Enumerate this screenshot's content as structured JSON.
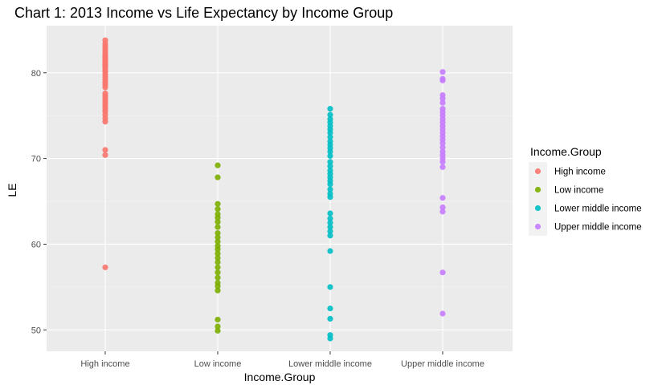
{
  "chart_data": {
    "type": "scatter",
    "title": "Chart 1: 2013 Income vs Life Expectancy by Income Group",
    "xlabel": "Income.Group",
    "ylabel": "LE",
    "categories": [
      "High income",
      "Low income",
      "Lower middle income",
      "Upper middle income"
    ],
    "yticks": [
      50,
      60,
      70,
      80
    ],
    "ylim": [
      47.5,
      85.5
    ],
    "grid": true,
    "legend": {
      "title": "Income.Group",
      "position": "right",
      "entries": [
        "High income",
        "Low income",
        "Lower middle income",
        "Upper middle income"
      ]
    },
    "series": [
      {
        "name": "High income",
        "color": "#F8766D",
        "values": [
          83.8,
          83.4,
          83.1,
          82.8,
          82.5,
          82.2,
          82.0,
          81.8,
          81.6,
          81.4,
          81.2,
          81.0,
          80.8,
          80.6,
          80.3,
          80.1,
          79.8,
          79.5,
          79.2,
          78.9,
          78.6,
          78.3,
          77.6,
          77.3,
          77.0,
          76.7,
          76.4,
          76.1,
          75.8,
          75.5,
          75.1,
          74.7,
          74.3,
          71.0,
          70.4,
          57.3
        ]
      },
      {
        "name": "Low income",
        "color": "#7CAE00",
        "values": [
          69.2,
          67.8,
          64.7,
          64.1,
          63.5,
          63.1,
          62.6,
          62.0,
          61.3,
          60.8,
          60.3,
          59.8,
          59.4,
          58.9,
          58.4,
          57.9,
          57.3,
          56.7,
          56.1,
          55.5,
          55.1,
          54.6,
          51.2,
          50.4,
          49.9
        ]
      },
      {
        "name": "Lower middle income",
        "color": "#00BFC4",
        "values": [
          75.8,
          75.1,
          74.6,
          74.2,
          73.8,
          73.4,
          73.0,
          72.5,
          72.0,
          71.6,
          71.2,
          70.8,
          70.3,
          69.6,
          69.1,
          68.6,
          68.2,
          67.8,
          67.4,
          67.0,
          66.4,
          65.9,
          65.5,
          63.6,
          63.0,
          62.5,
          62.0,
          61.5,
          61.0,
          59.2,
          55.0,
          52.5,
          51.3,
          49.4,
          49.0
        ]
      },
      {
        "name": "Upper middle income",
        "color": "#C77CFF",
        "values": [
          80.1,
          79.3,
          79.1,
          77.4,
          77.0,
          76.5,
          75.8,
          75.4,
          75.0,
          74.6,
          74.2,
          73.8,
          73.4,
          73.0,
          72.6,
          72.2,
          71.8,
          71.3,
          70.8,
          70.4,
          70.0,
          69.6,
          69.0,
          65.4,
          64.3,
          63.8,
          56.7,
          51.9
        ]
      }
    ]
  }
}
